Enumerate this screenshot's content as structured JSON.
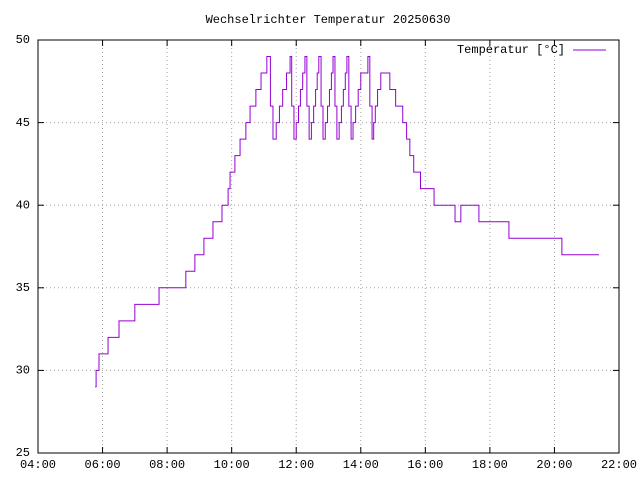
{
  "chart_data": {
    "type": "line",
    "style": "steps",
    "title": "Wechselrichter Temperatur 20250630",
    "x": [
      5.77,
      5.8,
      5.89,
      6.17,
      6.51,
      7.0,
      7.75,
      8.58,
      8.86,
      9.14,
      9.42,
      9.7,
      9.89,
      9.95,
      10.1,
      10.26,
      10.44,
      10.57,
      10.75,
      10.91,
      11.09,
      11.2,
      11.28,
      11.38,
      11.48,
      11.58,
      11.7,
      11.81,
      11.86,
      11.93,
      12.0,
      12.07,
      12.13,
      12.2,
      12.27,
      12.33,
      12.4,
      12.47,
      12.54,
      12.6,
      12.65,
      12.7,
      12.77,
      12.83,
      12.9,
      12.97,
      13.03,
      13.09,
      13.14,
      13.2,
      13.26,
      13.33,
      13.4,
      13.46,
      13.52,
      13.57,
      13.63,
      13.7,
      13.76,
      13.84,
      13.92,
      14.0,
      14.22,
      14.28,
      14.35,
      14.4,
      14.45,
      14.52,
      14.62,
      14.9,
      15.08,
      15.3,
      15.42,
      15.52,
      15.64,
      15.85,
      16.27,
      16.92,
      17.1,
      17.66,
      18.59,
      20.23,
      21.38
    ],
    "series": [
      {
        "name": "Temperatur [°C]",
        "color": "#9400d3",
        "values": [
          29,
          30,
          31,
          32,
          33,
          34,
          35,
          36,
          37,
          38,
          39,
          40,
          41,
          42,
          43,
          44,
          45,
          46,
          47,
          48,
          49,
          46,
          44,
          45,
          46,
          47,
          48,
          49,
          46,
          44,
          45,
          46,
          47,
          48,
          49,
          46,
          44,
          45,
          46,
          47,
          48,
          49,
          46,
          44,
          45,
          46,
          47,
          48,
          49,
          46,
          44,
          45,
          46,
          47,
          48,
          49,
          46,
          44,
          45,
          46,
          47,
          48,
          49,
          46,
          44,
          45,
          46,
          47,
          48,
          47,
          46,
          45,
          44,
          43,
          42,
          41,
          40,
          39,
          40,
          39,
          38,
          37,
          37
        ]
      }
    ],
    "xlim": [
      4,
      22
    ],
    "xticks": [
      {
        "value": 4,
        "label": "04:00"
      },
      {
        "value": 6,
        "label": "06:00"
      },
      {
        "value": 8,
        "label": "08:00"
      },
      {
        "value": 10,
        "label": "10:00"
      },
      {
        "value": 12,
        "label": "12:00"
      },
      {
        "value": 14,
        "label": "14:00"
      },
      {
        "value": 16,
        "label": "16:00"
      },
      {
        "value": 18,
        "label": "18:00"
      },
      {
        "value": 20,
        "label": "20:00"
      },
      {
        "value": 22,
        "label": "22:00"
      }
    ],
    "ylim": [
      25,
      50
    ],
    "yticks": [
      25,
      30,
      35,
      40,
      45,
      50
    ],
    "grid": true,
    "legend": "top-right"
  }
}
